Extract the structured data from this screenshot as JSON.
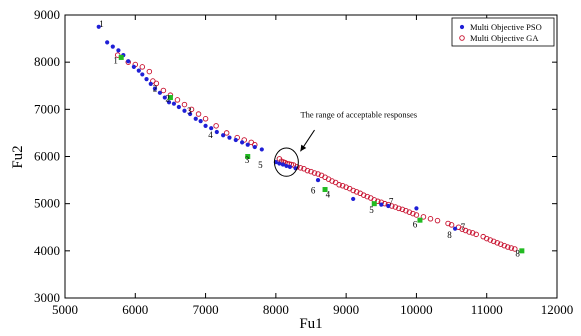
{
  "chart_data": {
    "type": "scatter",
    "title": "",
    "xlabel": "Fu1",
    "ylabel": "Fu2",
    "xlim": [
      5000,
      12000
    ],
    "ylim": [
      3000,
      9000
    ],
    "xticks": [
      5000,
      6000,
      7000,
      8000,
      9000,
      10000,
      11000,
      12000
    ],
    "yticks": [
      3000,
      4000,
      5000,
      6000,
      7000,
      8000,
      9000
    ],
    "xtick_labels": [
      "5000",
      "6000",
      "7000",
      "8000",
      "9000",
      "10000",
      "11000",
      "12000"
    ],
    "ytick_labels": [
      "3000",
      "4000",
      "5000",
      "6000",
      "7000",
      "8000",
      "9000"
    ],
    "grid": false,
    "legend_position": "top-right",
    "series": [
      {
        "name": "Multi Objective PSO",
        "marker": "filled-dot",
        "color": "#1f1fd6",
        "x": [
          5480,
          5600,
          5680,
          5760,
          5830,
          5900,
          5980,
          6050,
          6100,
          6160,
          6220,
          6280,
          6350,
          6420,
          6480,
          6550,
          6620,
          6700,
          6780,
          6860,
          6930,
          7000,
          7080,
          7160,
          7250,
          7340,
          7430,
          7520,
          7600,
          7700,
          7800,
          8000,
          8050,
          8100,
          8150,
          8200,
          8280,
          8600,
          9100,
          9500,
          9600,
          10000,
          10550
        ],
        "y": [
          8750,
          8420,
          8330,
          8250,
          8150,
          8020,
          7900,
          7820,
          7740,
          7640,
          7540,
          7440,
          7350,
          7250,
          7150,
          7120,
          7050,
          6970,
          6900,
          6800,
          6750,
          6650,
          6600,
          6520,
          6450,
          6400,
          6350,
          6300,
          6250,
          6200,
          6150,
          5880,
          5850,
          5830,
          5800,
          5780,
          5750,
          5500,
          5100,
          4980,
          4950,
          4900,
          4470
        ]
      },
      {
        "name": "Multi Objective GA",
        "marker": "open-circle",
        "color": "#c8102e",
        "x": [
          5750,
          5900,
          6000,
          6100,
          6200,
          6250,
          6300,
          6400,
          6500,
          6600,
          6700,
          6800,
          6900,
          7000,
          7150,
          7300,
          7450,
          7550,
          7650,
          7700,
          8050,
          8080,
          8110,
          8130,
          8160,
          8190,
          8220,
          8250,
          8300,
          8350,
          8400,
          8450,
          8500,
          8550,
          8600,
          8650,
          8700,
          8750,
          8800,
          8850,
          8900,
          8950,
          9000,
          9050,
          9100,
          9150,
          9200,
          9250,
          9300,
          9350,
          9400,
          9450,
          9500,
          9550,
          9600,
          9650,
          9700,
          9750,
          9800,
          9850,
          9900,
          9950,
          10000,
          10100,
          10200,
          10300,
          10450,
          10500,
          10600,
          10650,
          10700,
          10750,
          10800,
          10850,
          10950,
          11000,
          11050,
          11100,
          11150,
          11200,
          11250,
          11300,
          11350,
          11400
        ],
        "y": [
          8150,
          8000,
          7950,
          7900,
          7800,
          7600,
          7550,
          7400,
          7300,
          7200,
          7100,
          7000,
          6900,
          6800,
          6650,
          6500,
          6400,
          6350,
          6300,
          6250,
          5950,
          5900,
          5880,
          5870,
          5850,
          5840,
          5830,
          5820,
          5780,
          5760,
          5740,
          5700,
          5680,
          5650,
          5630,
          5600,
          5560,
          5520,
          5480,
          5450,
          5400,
          5380,
          5350,
          5320,
          5280,
          5250,
          5220,
          5180,
          5150,
          5120,
          5080,
          5050,
          5030,
          5000,
          4980,
          4950,
          4930,
          4900,
          4880,
          4850,
          4820,
          4790,
          4760,
          4720,
          4680,
          4640,
          4580,
          4550,
          4500,
          4460,
          4430,
          4400,
          4380,
          4350,
          4300,
          4260,
          4230,
          4200,
          4170,
          4140,
          4110,
          4080,
          4060,
          4040
        ]
      },
      {
        "name": "",
        "marker": "green-square",
        "color": "#22bb22",
        "x": [
          5800,
          6500,
          7600,
          8700,
          9400,
          10050,
          11500
        ],
        "y": [
          8100,
          7250,
          6000,
          5300,
          5000,
          4650,
          4000
        ]
      }
    ],
    "point_labels": [
      {
        "text": "1",
        "x": 5520,
        "y": 8750
      },
      {
        "text": "1",
        "x": 5720,
        "y": 7970
      },
      {
        "text": "2",
        "x": 6280,
        "y": 7380
      },
      {
        "text": "2",
        "x": 6460,
        "y": 7170
      },
      {
        "text": "3",
        "x": 6770,
        "y": 6900
      },
      {
        "text": "4",
        "x": 7070,
        "y": 6390
      },
      {
        "text": "3",
        "x": 7590,
        "y": 5860
      },
      {
        "text": "5",
        "x": 7780,
        "y": 5760
      },
      {
        "text": "6",
        "x": 8530,
        "y": 5220
      },
      {
        "text": "4",
        "x": 8740,
        "y": 5130
      },
      {
        "text": "7",
        "x": 9640,
        "y": 4980
      },
      {
        "text": "5",
        "x": 9360,
        "y": 4800
      },
      {
        "text": "6",
        "x": 9980,
        "y": 4500
      },
      {
        "text": "7",
        "x": 10660,
        "y": 4440
      },
      {
        "text": "8",
        "x": 10470,
        "y": 4270
      },
      {
        "text": "8",
        "x": 11440,
        "y": 3880
      }
    ],
    "annotation": {
      "text": "The range of acceptable responses",
      "text_x": 8350,
      "text_y": 6830,
      "arrow_from": [
        8550,
        6560
      ],
      "arrow_to": [
        8350,
        6110
      ],
      "ellipse_center": [
        8150,
        5880
      ],
      "ellipse_rx": 170,
      "ellipse_ry": 300
    }
  }
}
